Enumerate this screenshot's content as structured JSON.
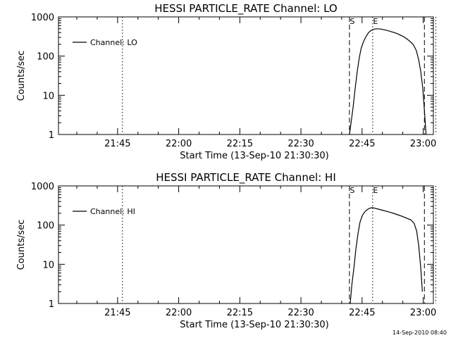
{
  "chart_data": [
    {
      "type": "line",
      "title": "HESSI PARTICLE_RATE Channel: LO",
      "xlabel": "Start Time (13-Sep-10 21:30:30)",
      "ylabel": "Counts/sec",
      "yscale": "log",
      "ylim": [
        1,
        1000
      ],
      "xlim_minutes_since_start": [
        0,
        92
      ],
      "xticks": [
        {
          "label": "21:45",
          "t": 14.5
        },
        {
          "label": "22:00",
          "t": 29.5
        },
        {
          "label": "22:15",
          "t": 44.5
        },
        {
          "label": "22:30",
          "t": 59.5
        },
        {
          "label": "22:45",
          "t": 74.5
        },
        {
          "label": "23:00",
          "t": 89.5
        }
      ],
      "yticks": [
        {
          "label": "1",
          "v": 1
        },
        {
          "label": "10",
          "v": 10
        },
        {
          "label": "100",
          "v": 100
        },
        {
          "label": "1000",
          "v": 1000
        }
      ],
      "legend": {
        "placement": "top-left",
        "entries": [
          "Channel: LO"
        ]
      },
      "series": [
        {
          "name": "Channel: LO",
          "points": [
            [
              71.4,
              1
            ],
            [
              71.8,
              2
            ],
            [
              72.3,
              5
            ],
            [
              72.8,
              15
            ],
            [
              73.3,
              40
            ],
            [
              73.8,
              90
            ],
            [
              74.3,
              160
            ],
            [
              74.9,
              240
            ],
            [
              75.5,
              320
            ],
            [
              76.1,
              400
            ],
            [
              76.7,
              450
            ],
            [
              77.3,
              480
            ],
            [
              78.0,
              500
            ],
            [
              79.0,
              490
            ],
            [
              80.0,
              470
            ],
            [
              81.0,
              440
            ],
            [
              82.0,
              410
            ],
            [
              83.0,
              380
            ],
            [
              84.0,
              340
            ],
            [
              85.0,
              300
            ],
            [
              86.0,
              250
            ],
            [
              87.0,
              200
            ],
            [
              87.8,
              140
            ],
            [
              88.4,
              80
            ],
            [
              88.9,
              40
            ],
            [
              89.4,
              15
            ],
            [
              89.8,
              4
            ],
            [
              90.2,
              1
            ]
          ]
        }
      ],
      "vertical_markers": [
        {
          "label": "",
          "t": 15.7,
          "style": "dotted"
        },
        {
          "label": "S",
          "t": 71.4,
          "style": "dashed"
        },
        {
          "label": "E",
          "t": 77.1,
          "style": "dotted"
        },
        {
          "label": "",
          "t": 89.8,
          "style": "dashed"
        },
        {
          "label": "",
          "t": 92.6,
          "style": "dotted"
        }
      ]
    },
    {
      "type": "line",
      "title": "HESSI PARTICLE_RATE Channel: HI",
      "xlabel": "Start Time (13-Sep-10 21:30:30)",
      "ylabel": "Counts/sec",
      "yscale": "log",
      "ylim": [
        1,
        1000
      ],
      "xlim_minutes_since_start": [
        0,
        92
      ],
      "xticks": [
        {
          "label": "21:45",
          "t": 14.5
        },
        {
          "label": "22:00",
          "t": 29.5
        },
        {
          "label": "22:15",
          "t": 44.5
        },
        {
          "label": "22:30",
          "t": 59.5
        },
        {
          "label": "22:45",
          "t": 74.5
        },
        {
          "label": "23:00",
          "t": 89.5
        }
      ],
      "yticks": [
        {
          "label": "1",
          "v": 1
        },
        {
          "label": "10",
          "v": 10
        },
        {
          "label": "100",
          "v": 100
        },
        {
          "label": "1000",
          "v": 1000
        }
      ],
      "legend": {
        "placement": "top-left",
        "entries": [
          "Channel: HI"
        ]
      },
      "series": [
        {
          "name": "Channel: HI",
          "points": [
            [
              71.6,
              1
            ],
            [
              72.0,
              3
            ],
            [
              72.5,
              8
            ],
            [
              73.0,
              25
            ],
            [
              73.5,
              60
            ],
            [
              74.0,
              120
            ],
            [
              74.6,
              180
            ],
            [
              75.2,
              220
            ],
            [
              75.8,
              250
            ],
            [
              76.4,
              270
            ],
            [
              77.0,
              280
            ],
            [
              77.6,
              270
            ],
            [
              78.5,
              255
            ],
            [
              79.5,
              240
            ],
            [
              80.5,
              225
            ],
            [
              81.5,
              210
            ],
            [
              82.5,
              195
            ],
            [
              83.5,
              180
            ],
            [
              84.5,
              165
            ],
            [
              85.5,
              150
            ],
            [
              86.5,
              135
            ],
            [
              87.3,
              110
            ],
            [
              87.9,
              70
            ],
            [
              88.4,
              30
            ],
            [
              88.9,
              8
            ],
            [
              89.3,
              2
            ]
          ]
        }
      ],
      "vertical_markers": [
        {
          "label": "",
          "t": 15.7,
          "style": "dotted"
        },
        {
          "label": "S",
          "t": 71.4,
          "style": "dashed"
        },
        {
          "label": "E",
          "t": 77.1,
          "style": "dotted"
        },
        {
          "label": "",
          "t": 89.8,
          "style": "dashed"
        },
        {
          "label": "",
          "t": 92.6,
          "style": "dotted"
        }
      ]
    }
  ],
  "footer": {
    "timestamp": "14-Sep-2010 08:40"
  }
}
